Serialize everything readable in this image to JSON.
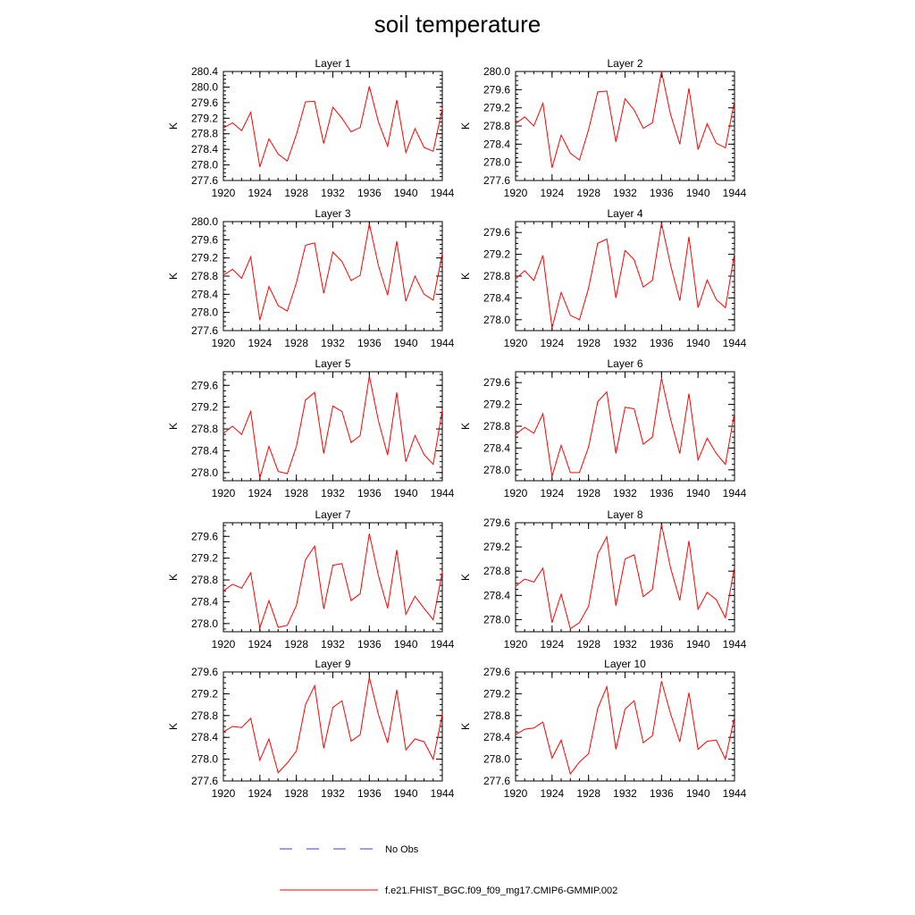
{
  "title": "soil temperature",
  "colors": {
    "model": "#ff0000",
    "obs": "#3b3bd6",
    "axis": "#000000"
  },
  "legend": [
    {
      "label": "No Obs",
      "style": "dashed",
      "color": "#3b3bd6"
    },
    {
      "label": "f.e21.FHIST_BGC.f09_f09_mg17.CMIP6-GMMIP.002",
      "style": "solid",
      "color": "#ff0000"
    }
  ],
  "chart_data": [
    {
      "type": "line",
      "title": "Layer 1",
      "ylabel": "K",
      "xlim": [
        1920,
        1944
      ],
      "ylim": [
        277.6,
        280.4
      ],
      "xticks": [
        1920,
        1924,
        1928,
        1932,
        1936,
        1940,
        1944
      ],
      "yticks": [
        277.6,
        278.0,
        278.4,
        278.8,
        279.2,
        279.6,
        280.0,
        280.4
      ],
      "x": [
        1920,
        1921,
        1922,
        1923,
        1924,
        1925,
        1926,
        1927,
        1928,
        1929,
        1930,
        1931,
        1932,
        1933,
        1934,
        1935,
        1936,
        1937,
        1938,
        1939,
        1940,
        1941,
        1942,
        1943,
        1944
      ],
      "series": [
        {
          "name": "f.e21.FHIST_BGC.f09_f09_mg17.CMIP6-GMMIP.002",
          "values": [
            278.95,
            279.08,
            278.88,
            279.35,
            277.95,
            278.67,
            278.28,
            278.1,
            278.78,
            279.62,
            279.63,
            278.55,
            279.48,
            279.2,
            278.85,
            278.96,
            280.02,
            279.1,
            278.48,
            279.67,
            278.32,
            278.93,
            278.45,
            278.35,
            279.45
          ]
        }
      ]
    },
    {
      "type": "line",
      "title": "Layer 2",
      "ylabel": "K",
      "xlim": [
        1920,
        1944
      ],
      "ylim": [
        277.6,
        280.0
      ],
      "xticks": [
        1920,
        1924,
        1928,
        1932,
        1936,
        1940,
        1944
      ],
      "yticks": [
        277.6,
        278.0,
        278.4,
        278.8,
        279.2,
        279.6,
        280.0
      ],
      "x": [
        1920,
        1921,
        1922,
        1923,
        1924,
        1925,
        1926,
        1927,
        1928,
        1929,
        1930,
        1931,
        1932,
        1933,
        1934,
        1935,
        1936,
        1937,
        1938,
        1939,
        1940,
        1941,
        1942,
        1943,
        1944
      ],
      "series": [
        {
          "name": "f.e21.FHIST_BGC.f09_f09_mg17.CMIP6-GMMIP.002",
          "values": [
            278.85,
            279.0,
            278.8,
            279.3,
            277.88,
            278.6,
            278.2,
            278.05,
            278.72,
            279.55,
            279.57,
            278.45,
            279.4,
            279.15,
            278.75,
            278.87,
            280.0,
            279.05,
            278.4,
            279.63,
            278.28,
            278.85,
            278.42,
            278.32,
            279.35
          ]
        }
      ]
    },
    {
      "type": "line",
      "title": "Layer 3",
      "ylabel": "K",
      "xlim": [
        1920,
        1944
      ],
      "ylim": [
        277.6,
        280.0
      ],
      "xticks": [
        1920,
        1924,
        1928,
        1932,
        1936,
        1940,
        1944
      ],
      "yticks": [
        277.6,
        278.0,
        278.4,
        278.8,
        279.2,
        279.6,
        280.0
      ],
      "x": [
        1920,
        1921,
        1922,
        1923,
        1924,
        1925,
        1926,
        1927,
        1928,
        1929,
        1930,
        1931,
        1932,
        1933,
        1934,
        1935,
        1936,
        1937,
        1938,
        1939,
        1940,
        1941,
        1942,
        1943,
        1944
      ],
      "series": [
        {
          "name": "f.e21.FHIST_BGC.f09_f09_mg17.CMIP6-GMMIP.002",
          "values": [
            278.82,
            278.95,
            278.75,
            279.22,
            277.83,
            278.57,
            278.15,
            278.03,
            278.65,
            279.48,
            279.53,
            278.42,
            279.33,
            279.12,
            278.7,
            278.82,
            279.95,
            279.03,
            278.38,
            279.57,
            278.25,
            278.8,
            278.4,
            278.27,
            279.3
          ]
        }
      ]
    },
    {
      "type": "line",
      "title": "Layer 4",
      "ylabel": "K",
      "xlim": [
        1920,
        1944
      ],
      "ylim": [
        277.8,
        279.8
      ],
      "xticks": [
        1920,
        1924,
        1928,
        1932,
        1936,
        1940,
        1944
      ],
      "yticks": [
        278.0,
        278.4,
        278.8,
        279.2,
        279.6
      ],
      "x": [
        1920,
        1921,
        1922,
        1923,
        1924,
        1925,
        1926,
        1927,
        1928,
        1929,
        1930,
        1931,
        1932,
        1933,
        1934,
        1935,
        1936,
        1937,
        1938,
        1939,
        1940,
        1941,
        1942,
        1943,
        1944
      ],
      "series": [
        {
          "name": "f.e21.FHIST_BGC.f09_f09_mg17.CMIP6-GMMIP.002",
          "values": [
            278.75,
            278.9,
            278.72,
            279.18,
            277.85,
            278.5,
            278.08,
            278.0,
            278.58,
            279.4,
            279.48,
            278.4,
            279.27,
            279.1,
            278.6,
            278.72,
            279.77,
            279.0,
            278.35,
            279.52,
            278.22,
            278.73,
            278.37,
            278.22,
            279.22
          ]
        }
      ]
    },
    {
      "type": "line",
      "title": "Layer 5",
      "ylabel": "K",
      "xlim": [
        1920,
        1944
      ],
      "ylim": [
        277.85,
        279.85
      ],
      "xticks": [
        1920,
        1924,
        1928,
        1932,
        1936,
        1940,
        1944
      ],
      "yticks": [
        278.0,
        278.4,
        278.8,
        279.2,
        279.6
      ],
      "x": [
        1920,
        1921,
        1922,
        1923,
        1924,
        1925,
        1926,
        1927,
        1928,
        1929,
        1930,
        1931,
        1932,
        1933,
        1934,
        1935,
        1936,
        1937,
        1938,
        1939,
        1940,
        1941,
        1942,
        1943,
        1944
      ],
      "series": [
        {
          "name": "f.e21.FHIST_BGC.f09_f09_mg17.CMIP6-GMMIP.002",
          "values": [
            278.72,
            278.85,
            278.7,
            279.12,
            277.9,
            278.48,
            278.02,
            277.98,
            278.48,
            279.33,
            279.47,
            278.35,
            279.22,
            279.12,
            278.55,
            278.68,
            279.77,
            278.95,
            278.32,
            279.47,
            278.2,
            278.68,
            278.33,
            278.15,
            279.15
          ]
        }
      ]
    },
    {
      "type": "line",
      "title": "Layer 6",
      "ylabel": "K",
      "xlim": [
        1920,
        1944
      ],
      "ylim": [
        277.8,
        279.8
      ],
      "xticks": [
        1920,
        1924,
        1928,
        1932,
        1936,
        1940,
        1944
      ],
      "yticks": [
        278.0,
        278.4,
        278.8,
        279.2,
        279.6
      ],
      "x": [
        1920,
        1921,
        1922,
        1923,
        1924,
        1925,
        1926,
        1927,
        1928,
        1929,
        1930,
        1931,
        1932,
        1933,
        1934,
        1935,
        1936,
        1937,
        1938,
        1939,
        1940,
        1941,
        1942,
        1943,
        1944
      ],
      "series": [
        {
          "name": "f.e21.FHIST_BGC.f09_f09_mg17.CMIP6-GMMIP.002",
          "values": [
            278.65,
            278.78,
            278.67,
            279.03,
            277.88,
            278.45,
            277.95,
            277.95,
            278.42,
            279.25,
            279.43,
            278.3,
            279.15,
            279.12,
            278.47,
            278.6,
            279.68,
            278.93,
            278.3,
            279.4,
            278.18,
            278.58,
            278.3,
            278.1,
            279.05
          ]
        }
      ]
    },
    {
      "type": "line",
      "title": "Layer 7",
      "ylabel": "K",
      "xlim": [
        1920,
        1944
      ],
      "ylim": [
        277.85,
        279.85
      ],
      "xticks": [
        1920,
        1924,
        1928,
        1932,
        1936,
        1940,
        1944
      ],
      "yticks": [
        278.0,
        278.4,
        278.8,
        279.2,
        279.6
      ],
      "x": [
        1920,
        1921,
        1922,
        1923,
        1924,
        1925,
        1926,
        1927,
        1928,
        1929,
        1930,
        1931,
        1932,
        1933,
        1934,
        1935,
        1936,
        1937,
        1938,
        1939,
        1940,
        1941,
        1942,
        1943,
        1944
      ],
      "series": [
        {
          "name": "f.e21.FHIST_BGC.f09_f09_mg17.CMIP6-GMMIP.002",
          "values": [
            278.6,
            278.72,
            278.65,
            278.93,
            277.92,
            278.42,
            277.93,
            277.97,
            278.33,
            279.17,
            279.42,
            278.27,
            279.07,
            279.1,
            278.42,
            278.55,
            279.65,
            278.88,
            278.28,
            279.35,
            278.17,
            278.5,
            278.28,
            278.07,
            278.95
          ]
        }
      ]
    },
    {
      "type": "line",
      "title": "Layer 8",
      "ylabel": "K",
      "xlim": [
        1920,
        1944
      ],
      "ylim": [
        277.8,
        279.6
      ],
      "xticks": [
        1920,
        1924,
        1928,
        1932,
        1936,
        1940,
        1944
      ],
      "yticks": [
        278.0,
        278.4,
        278.8,
        279.2,
        279.6
      ],
      "x": [
        1920,
        1921,
        1922,
        1923,
        1924,
        1925,
        1926,
        1927,
        1928,
        1929,
        1930,
        1931,
        1932,
        1933,
        1934,
        1935,
        1936,
        1937,
        1938,
        1939,
        1940,
        1941,
        1942,
        1943,
        1944
      ],
      "series": [
        {
          "name": "f.e21.FHIST_BGC.f09_f09_mg17.CMIP6-GMMIP.002",
          "values": [
            278.55,
            278.67,
            278.62,
            278.85,
            277.95,
            278.42,
            277.85,
            277.95,
            278.22,
            279.08,
            279.37,
            278.23,
            279.0,
            279.07,
            278.38,
            278.5,
            279.57,
            278.85,
            278.32,
            279.3,
            278.17,
            278.45,
            278.33,
            278.03,
            278.87
          ]
        }
      ]
    },
    {
      "type": "line",
      "title": "Layer 9",
      "ylabel": "K",
      "xlim": [
        1920,
        1944
      ],
      "ylim": [
        277.6,
        279.6
      ],
      "xticks": [
        1920,
        1924,
        1928,
        1932,
        1936,
        1940,
        1944
      ],
      "yticks": [
        277.6,
        278.0,
        278.4,
        278.8,
        279.2,
        279.6
      ],
      "x": [
        1920,
        1921,
        1922,
        1923,
        1924,
        1925,
        1926,
        1927,
        1928,
        1929,
        1930,
        1931,
        1932,
        1933,
        1934,
        1935,
        1936,
        1937,
        1938,
        1939,
        1940,
        1941,
        1942,
        1943,
        1944
      ],
      "series": [
        {
          "name": "f.e21.FHIST_BGC.f09_f09_mg17.CMIP6-GMMIP.002",
          "values": [
            278.5,
            278.6,
            278.58,
            278.75,
            277.98,
            278.37,
            277.75,
            277.93,
            278.15,
            279.0,
            279.35,
            278.2,
            278.95,
            279.07,
            278.33,
            278.45,
            279.5,
            278.82,
            278.3,
            279.27,
            278.17,
            278.37,
            278.32,
            278.0,
            278.82
          ]
        }
      ]
    },
    {
      "type": "line",
      "title": "Layer 10",
      "ylabel": "K",
      "xlim": [
        1920,
        1944
      ],
      "ylim": [
        277.6,
        279.6
      ],
      "xticks": [
        1920,
        1924,
        1928,
        1932,
        1936,
        1940,
        1944
      ],
      "yticks": [
        277.6,
        278.0,
        278.4,
        278.8,
        279.2,
        279.6
      ],
      "x": [
        1920,
        1921,
        1922,
        1923,
        1924,
        1925,
        1926,
        1927,
        1928,
        1929,
        1930,
        1931,
        1932,
        1933,
        1934,
        1935,
        1936,
        1937,
        1938,
        1939,
        1940,
        1941,
        1942,
        1943,
        1944
      ],
      "series": [
        {
          "name": "f.e21.FHIST_BGC.f09_f09_mg17.CMIP6-GMMIP.002",
          "values": [
            278.45,
            278.55,
            278.57,
            278.68,
            278.02,
            278.35,
            277.73,
            277.95,
            278.1,
            278.93,
            279.33,
            278.18,
            278.92,
            279.07,
            278.3,
            278.43,
            279.43,
            278.83,
            278.32,
            279.22,
            278.18,
            278.33,
            278.35,
            278.0,
            278.77
          ]
        }
      ]
    }
  ]
}
